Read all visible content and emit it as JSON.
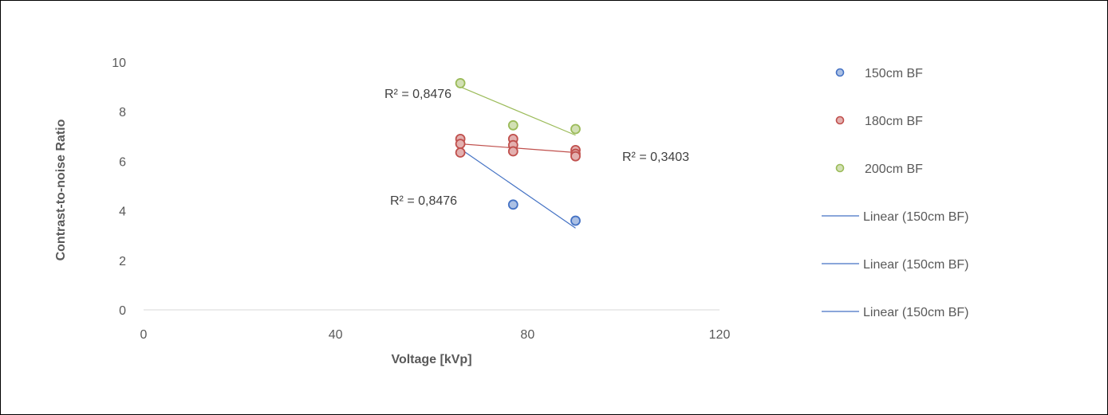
{
  "chart_data": {
    "type": "scatter",
    "xlabel": "Voltage [kVp]",
    "ylabel": "Contrast-to-noise Ratio",
    "xlim": [
      0,
      120
    ],
    "ylim": [
      0,
      10
    ],
    "x_ticks": [
      "0",
      "40",
      "80",
      "120"
    ],
    "y_ticks": [
      "0",
      "2",
      "4",
      "6",
      "8",
      "10"
    ],
    "grid": false,
    "legend_position": "right",
    "series": [
      {
        "name": "150cm BF",
        "color": "#4472C4",
        "points": [
          [
            77,
            4.25
          ],
          [
            90,
            3.6
          ]
        ],
        "trendline": {
          "x": [
            66,
            90
          ],
          "y": [
            6.5,
            3.3
          ]
        }
      },
      {
        "name": "180cm BF",
        "color": "#C0504D",
        "points": [
          [
            66,
            6.9
          ],
          [
            66,
            6.7
          ],
          [
            66,
            6.35
          ],
          [
            77,
            6.9
          ],
          [
            77,
            6.65
          ],
          [
            77,
            6.4
          ],
          [
            90,
            6.45
          ],
          [
            90,
            6.3
          ],
          [
            90,
            6.2
          ]
        ],
        "trendline": {
          "x": [
            66,
            90
          ],
          "y": [
            6.7,
            6.35
          ]
        }
      },
      {
        "name": "200cm BF",
        "color": "#9BBB59",
        "points": [
          [
            66,
            9.15
          ],
          [
            77,
            7.45
          ],
          [
            90,
            7.3
          ]
        ],
        "trendline": {
          "x": [
            66,
            90
          ],
          "y": [
            9.0,
            7.05
          ]
        }
      }
    ],
    "annotations": [
      {
        "text": "R² = 0,8476",
        "series": "200cm BF"
      },
      {
        "text": "R² = 0,3403",
        "series": "180cm BF"
      },
      {
        "text": "R² = 0,8476",
        "series": "150cm BF"
      }
    ],
    "legend": [
      {
        "label": "150cm BF",
        "kind": "marker",
        "color": "#4472C4"
      },
      {
        "label": "180cm BF",
        "kind": "marker",
        "color": "#C0504D"
      },
      {
        "label": "200cm BF",
        "kind": "marker",
        "color": "#9BBB59"
      },
      {
        "label": "Linear (150cm BF)",
        "kind": "line",
        "color": "#4472C4"
      },
      {
        "label": "Linear (150cm BF)",
        "kind": "line",
        "color": "#4472C4"
      },
      {
        "label": "Linear (150cm BF)",
        "kind": "line",
        "color": "#4472C4"
      }
    ]
  }
}
